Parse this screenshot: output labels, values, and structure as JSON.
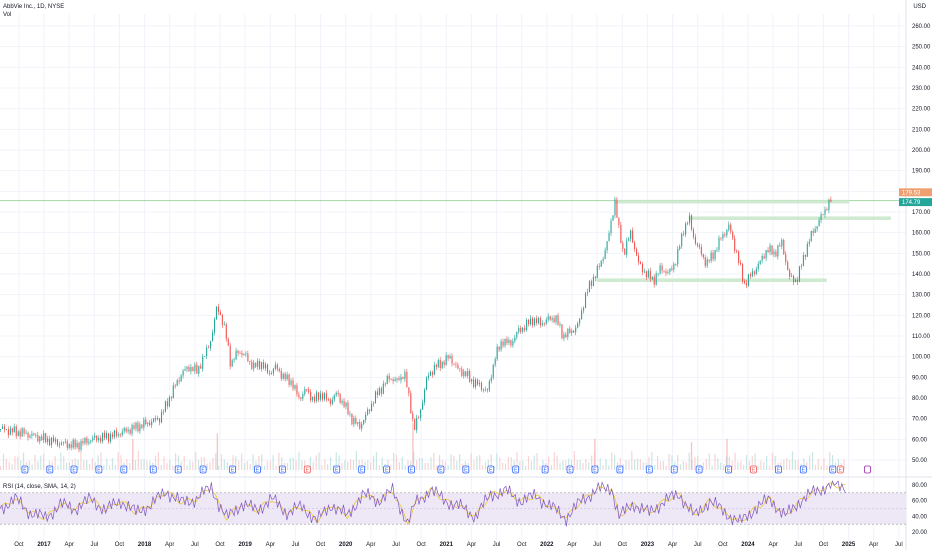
{
  "legend": {
    "symbol_line": "AbbVie Inc., 1D, NYSE",
    "volume_label": "Vol"
  },
  "currency": "USD",
  "rsi_legend": "RSI (14, close, SMA, 14, 2)",
  "colors": {
    "up": "#26a69a",
    "down": "#ef5350",
    "zone": "#c8e6c9",
    "price_tag_green": "#26a69a",
    "price_tag_orange": "#f0a070",
    "rsi_line": "#7e57c2",
    "rsi_ma": "#f0c419",
    "rsi_band": "#ede7f6",
    "earnings_blue": "#2962ff",
    "earnings_red": "#ef5350"
  },
  "chart_data": {
    "type": "candlestick",
    "price_axis": {
      "min": 45,
      "max": 265,
      "ticks": [
        "50.00",
        "60.00",
        "70.00",
        "80.00",
        "90.00",
        "100.00",
        "110.00",
        "120.00",
        "130.00",
        "140.00",
        "150.00",
        "160.00",
        "170.00",
        "180.00",
        "190.00",
        "200.00",
        "210.00",
        "220.00",
        "230.00",
        "240.00",
        "250.00",
        "260.00"
      ]
    },
    "rsi_axis": {
      "ticks": [
        "80.00",
        "60.00",
        "40.00",
        "20.00"
      ]
    },
    "time_axis": [
      "Oct",
      "2017",
      "Apr",
      "Jul",
      "Oct",
      "2018",
      "Apr",
      "Jul",
      "Oct",
      "2019",
      "Apr",
      "Jul",
      "Oct",
      "2020",
      "Apr",
      "Jul",
      "Oct",
      "2021",
      "Apr",
      "Jul",
      "Oct",
      "2022",
      "Apr",
      "Jul",
      "Oct",
      "2023",
      "Apr",
      "Jul",
      "Oct",
      "2024",
      "Apr",
      "Jul",
      "Oct",
      "2025",
      "Apr",
      "Jul"
    ],
    "price_tags": [
      {
        "label": "179.53",
        "color": "orange"
      },
      {
        "label": "174.79",
        "color": "green"
      }
    ],
    "price_path": [
      [
        0,
        65
      ],
      [
        3,
        63
      ],
      [
        6,
        60
      ],
      [
        8,
        58
      ],
      [
        10,
        57
      ],
      [
        12,
        60
      ],
      [
        15,
        62
      ],
      [
        18,
        66
      ],
      [
        21,
        70
      ],
      [
        22,
        77
      ],
      [
        23,
        85
      ],
      [
        24,
        92
      ],
      [
        25,
        95
      ],
      [
        26,
        93
      ],
      [
        27,
        100
      ],
      [
        28,
        110
      ],
      [
        28.7,
        125
      ],
      [
        29.3,
        118
      ],
      [
        30,
        108
      ],
      [
        30.5,
        96
      ],
      [
        31.5,
        103
      ],
      [
        32.5,
        100
      ],
      [
        33.5,
        95
      ],
      [
        34.5,
        97
      ],
      [
        35.5,
        92
      ],
      [
        36.5,
        95
      ],
      [
        37.5,
        90
      ],
      [
        38.5,
        88
      ],
      [
        39.5,
        80
      ],
      [
        40.5,
        84
      ],
      [
        41.5,
        79
      ],
      [
        42.5,
        82
      ],
      [
        43.5,
        78
      ],
      [
        44.5,
        82
      ],
      [
        45.5,
        77
      ],
      [
        46.5,
        70
      ],
      [
        47.5,
        66
      ],
      [
        48.5,
        72
      ],
      [
        49.5,
        80
      ],
      [
        50.5,
        85
      ],
      [
        51.5,
        90
      ],
      [
        52.5,
        88
      ],
      [
        53.5,
        92
      ],
      [
        54.2,
        78
      ],
      [
        54.8,
        65
      ],
      [
        55.5,
        72
      ],
      [
        56.5,
        90
      ],
      [
        57.5,
        95
      ],
      [
        58.5,
        97
      ],
      [
        59.5,
        100
      ],
      [
        60.5,
        94
      ],
      [
        61.5,
        92
      ],
      [
        62.5,
        88
      ],
      [
        63.5,
        86
      ],
      [
        64.5,
        83
      ],
      [
        65.5,
        100
      ],
      [
        66.5,
        108
      ],
      [
        67.5,
        106
      ],
      [
        68.5,
        112
      ],
      [
        69.5,
        115
      ],
      [
        70.5,
        118
      ],
      [
        71.5,
        116
      ],
      [
        72.5,
        118
      ],
      [
        73.5,
        119
      ],
      [
        74.5,
        110
      ],
      [
        75.5,
        112
      ],
      [
        76.5,
        115
      ],
      [
        77.5,
        130
      ],
      [
        78.5,
        138
      ],
      [
        79.5,
        145
      ],
      [
        80.5,
        157
      ],
      [
        81,
        168
      ],
      [
        81.4,
        176
      ],
      [
        81.8,
        163
      ],
      [
        82.5,
        150
      ],
      [
        83.5,
        160
      ],
      [
        84.5,
        145
      ],
      [
        85.5,
        140
      ],
      [
        86.5,
        137
      ],
      [
        87.5,
        143
      ],
      [
        88.5,
        140
      ],
      [
        89.5,
        147
      ],
      [
        90.5,
        162
      ],
      [
        91.2,
        167
      ],
      [
        91.8,
        158
      ],
      [
        92.5,
        152
      ],
      [
        93.5,
        145
      ],
      [
        94.5,
        150
      ],
      [
        95.5,
        158
      ],
      [
        96.5,
        163
      ],
      [
        97.5,
        150
      ],
      [
        98.5,
        135
      ],
      [
        99.5,
        140
      ],
      [
        100.5,
        145
      ],
      [
        101.5,
        152
      ],
      [
        102.5,
        150
      ],
      [
        103.5,
        155
      ],
      [
        104.5,
        138
      ],
      [
        105.5,
        137
      ],
      [
        106.5,
        150
      ],
      [
        107.5,
        160
      ],
      [
        108.5,
        166
      ],
      [
        109.3,
        172
      ],
      [
        110,
        175.5
      ]
    ],
    "zones": [
      {
        "from": 81.4,
        "to": 112.5,
        "price": 175
      },
      {
        "from": 91.2,
        "to": 118,
        "price": 167
      },
      {
        "from": 79,
        "to": 109.5,
        "price": 137
      }
    ],
    "volume_spikes": [
      {
        "t": 17.5,
        "v": 0.55
      },
      {
        "t": 28.7,
        "v": 0.7
      },
      {
        "t": 54.6,
        "v": 1.0
      },
      {
        "t": 78.7,
        "v": 0.55
      },
      {
        "t": 91.5,
        "v": 0.45
      },
      {
        "t": 96.2,
        "v": 0.55
      }
    ],
    "earnings_markers": [
      {
        "t": 3.3,
        "type": "blue"
      },
      {
        "t": 6.6,
        "type": "blue"
      },
      {
        "t": 9.8,
        "type": "blue"
      },
      {
        "t": 13.1,
        "type": "blue"
      },
      {
        "t": 16.4,
        "type": "blue"
      },
      {
        "t": 20.3,
        "type": "blue"
      },
      {
        "t": 23.6,
        "type": "blue"
      },
      {
        "t": 26.9,
        "type": "blue"
      },
      {
        "t": 30.8,
        "type": "blue"
      },
      {
        "t": 34.1,
        "type": "blue"
      },
      {
        "t": 37.4,
        "type": "blue"
      },
      {
        "t": 40.7,
        "type": "red"
      },
      {
        "t": 44.6,
        "type": "blue"
      },
      {
        "t": 47.9,
        "type": "blue"
      },
      {
        "t": 51.2,
        "type": "blue"
      },
      {
        "t": 54.5,
        "type": "blue"
      },
      {
        "t": 58.4,
        "type": "blue"
      },
      {
        "t": 61.7,
        "type": "blue"
      },
      {
        "t": 65,
        "type": "blue"
      },
      {
        "t": 68.3,
        "type": "blue"
      },
      {
        "t": 72.2,
        "type": "blue"
      },
      {
        "t": 75.5,
        "type": "blue"
      },
      {
        "t": 78.8,
        "type": "blue"
      },
      {
        "t": 82.1,
        "type": "blue"
      },
      {
        "t": 86,
        "type": "blue"
      },
      {
        "t": 89.3,
        "type": "blue"
      },
      {
        "t": 92.6,
        "type": "blue"
      },
      {
        "t": 96.5,
        "type": "blue"
      },
      {
        "t": 99.8,
        "type": "red"
      },
      {
        "t": 103.1,
        "type": "blue"
      },
      {
        "t": 106.4,
        "type": "blue"
      },
      {
        "t": 110.3,
        "type": "blue"
      },
      {
        "t": 111.3,
        "type": "red"
      },
      {
        "t": 114.9,
        "type": "purple"
      }
    ],
    "rsi_path": [
      [
        0,
        50
      ],
      [
        2,
        62
      ],
      [
        4,
        45
      ],
      [
        6,
        38
      ],
      [
        8,
        55
      ],
      [
        10,
        50
      ],
      [
        12,
        62
      ],
      [
        14,
        48
      ],
      [
        16,
        60
      ],
      [
        18,
        45
      ],
      [
        20,
        55
      ],
      [
        22,
        72
      ],
      [
        24,
        58
      ],
      [
        26,
        62
      ],
      [
        28,
        78
      ],
      [
        29,
        55
      ],
      [
        30,
        38
      ],
      [
        32,
        56
      ],
      [
        34,
        48
      ],
      [
        36,
        62
      ],
      [
        38,
        45
      ],
      [
        40,
        52
      ],
      [
        42,
        35
      ],
      [
        44,
        55
      ],
      [
        46,
        40
      ],
      [
        48,
        68
      ],
      [
        50,
        60
      ],
      [
        52,
        72
      ],
      [
        54,
        32
      ],
      [
        55,
        56
      ],
      [
        57,
        74
      ],
      [
        59,
        60
      ],
      [
        61,
        52
      ],
      [
        63,
        40
      ],
      [
        65,
        68
      ],
      [
        67,
        72
      ],
      [
        69,
        60
      ],
      [
        71,
        66
      ],
      [
        73,
        52
      ],
      [
        75,
        38
      ],
      [
        77,
        60
      ],
      [
        79,
        74
      ],
      [
        81,
        76
      ],
      [
        82,
        40
      ],
      [
        84,
        56
      ],
      [
        86,
        44
      ],
      [
        88,
        60
      ],
      [
        90,
        68
      ],
      [
        92,
        40
      ],
      [
        94,
        60
      ],
      [
        96,
        45
      ],
      [
        98,
        32
      ],
      [
        100,
        50
      ],
      [
        102,
        62
      ],
      [
        104,
        40
      ],
      [
        106,
        60
      ],
      [
        108,
        72
      ],
      [
        110,
        80
      ],
      [
        112,
        78
      ]
    ]
  }
}
